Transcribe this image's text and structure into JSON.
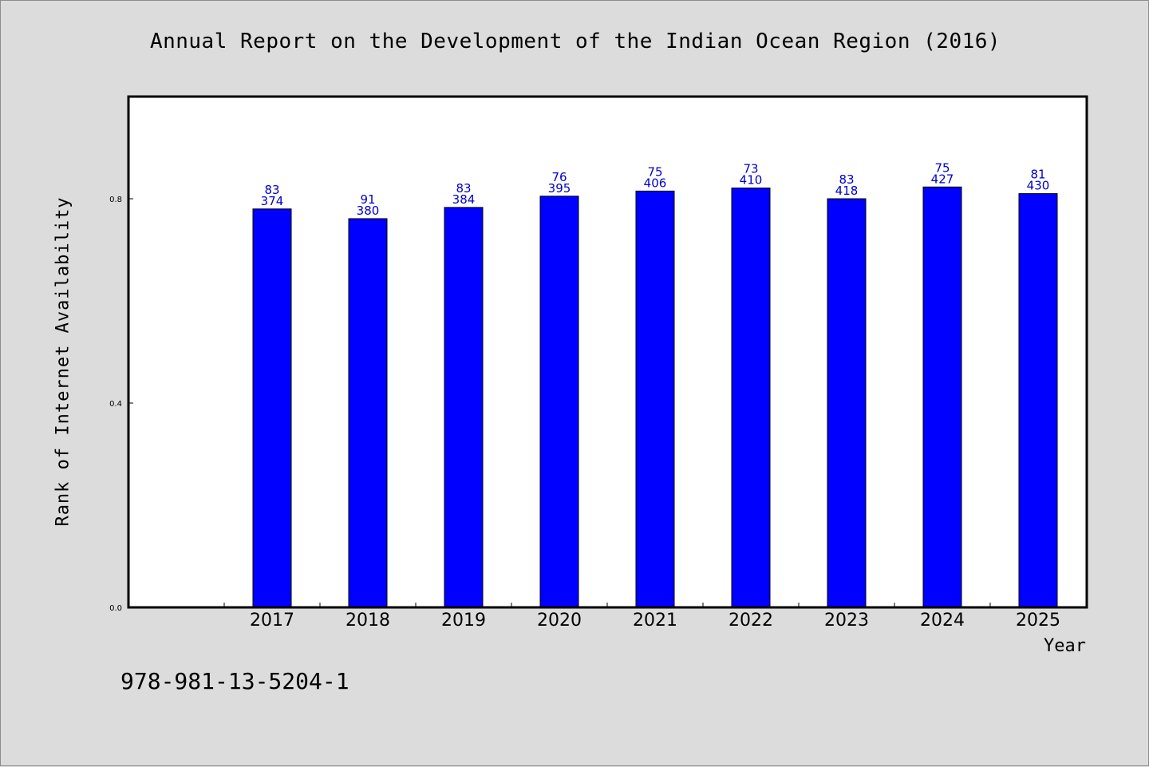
{
  "chart_data": {
    "type": "bar",
    "title": "Annual Report on the Development of the Indian Ocean Region (2016)",
    "xlabel": "Year",
    "ylabel": "Rank of Internet Availability",
    "categories": [
      "2017",
      "2018",
      "2019",
      "2020",
      "2021",
      "2022",
      "2023",
      "2024",
      "2025"
    ],
    "values": [
      0.78,
      0.761,
      0.783,
      0.805,
      0.815,
      0.821,
      0.8,
      0.823,
      0.81
    ],
    "bar_labels_top": [
      "83",
      "91",
      "83",
      "76",
      "75",
      "73",
      "83",
      "75",
      "81"
    ],
    "bar_labels_bottom": [
      "374",
      "380",
      "384",
      "395",
      "406",
      "410",
      "418",
      "427",
      "430"
    ],
    "ylim": [
      0.0,
      1.0
    ],
    "yticks": [
      "0.0",
      "0.4",
      "0.8"
    ],
    "bar_color": "#0000ff",
    "label_color": "#0000cc",
    "grid": false,
    "legend": "none"
  },
  "footer": {
    "isbn": "978-981-13-5204-1"
  }
}
